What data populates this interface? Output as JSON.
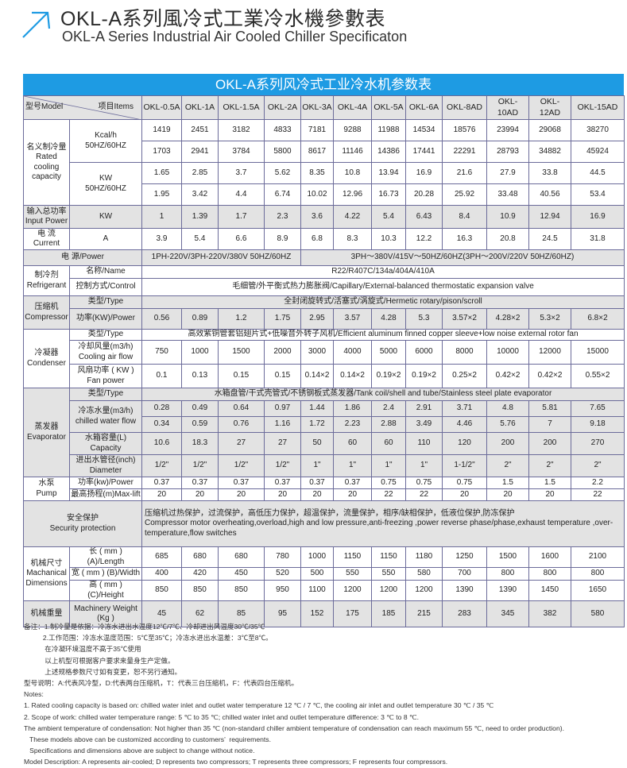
{
  "header": {
    "icon": "arrow-up-right-icon",
    "accent_color": "#1e9be3",
    "title_cn": "OKL-A系列風冷式工業冷水機參數表",
    "title_en": "OKL-A Series Industrial Air Cooled Chiller Specificaton"
  },
  "table": {
    "title": "OKL-A系列风冷式工业冷水机参数表",
    "model_label": "型号Model",
    "items_label": "项目Items",
    "models": [
      "OKL-0.5A",
      "OKL-1A",
      "OKL-1.5A",
      "OKL-2A",
      "OKL-3A",
      "OKL-4A",
      "OKL-5A",
      "OKL-6A",
      "OKL-8AD",
      "OKL-10AD",
      "OKL-12AD",
      "OKL-15AD"
    ],
    "groups": [
      {
        "label": "名义制冷量\nRated\ncooling\ncapacity",
        "shade": false,
        "subs": [
          {
            "label": "Kcal/h\n50HZ/60HZ",
            "lines": [
              {
                "values": [
                  "1419",
                  "2451",
                  "3182",
                  "4833",
                  "7181",
                  "9288",
                  "11988",
                  "14534",
                  "18576",
                  "23994",
                  "29068",
                  "38270"
                ]
              },
              {
                "values": [
                  "1703",
                  "2941",
                  "3784",
                  "5800",
                  "8617",
                  "11146",
                  "14386",
                  "17441",
                  "22291",
                  "28793",
                  "34882",
                  "45924"
                ]
              }
            ]
          },
          {
            "label": "KW\n50HZ/60HZ",
            "lines": [
              {
                "values": [
                  "1.65",
                  "2.85",
                  "3.7",
                  "5.62",
                  "8.35",
                  "10.8",
                  "13.94",
                  "16.9",
                  "21.6",
                  "27.9",
                  "33.8",
                  "44.5"
                ]
              },
              {
                "values": [
                  "1.95",
                  "3.42",
                  "4.4",
                  "6.74",
                  "10.02",
                  "12.96",
                  "16.73",
                  "20.28",
                  "25.92",
                  "33.48",
                  "40.56",
                  "53.4"
                ]
              }
            ]
          }
        ]
      },
      {
        "label": "输入总功率\nInput Power",
        "shade": true,
        "subs": [
          {
            "label": "KW",
            "lines": [
              {
                "values": [
                  "1",
                  "1.39",
                  "1.7",
                  "2.3",
                  "3.6",
                  "4.22",
                  "5.4",
                  "6.43",
                  "8.4",
                  "10.9",
                  "12.94",
                  "16.9"
                ]
              }
            ]
          }
        ]
      },
      {
        "label": "电  流\nCurrent",
        "shade": false,
        "subs": [
          {
            "label": "A",
            "lines": [
              {
                "values": [
                  "3.9",
                  "5.4",
                  "6.6",
                  "8.9",
                  "6.8",
                  "8.3",
                  "10.3",
                  "12.2",
                  "16.3",
                  "20.8",
                  "24.5",
                  "31.8"
                ]
              }
            ]
          }
        ]
      },
      {
        "label": "电      源/Power",
        "merged": true,
        "shade": true,
        "subs": [
          {
            "label": "",
            "lines": [
              {
                "spans": [
                  {
                    "text": "1PH-220V/3PH-220V/380V 50HZ/60HZ",
                    "cols": 4
                  },
                  {
                    "text": "3PH～380V/415V～50HZ/60HZ(3PH～200V/220V   50HZ/60HZ)",
                    "cols": 8
                  }
                ]
              }
            ]
          }
        ]
      },
      {
        "label": "制冷剂\nRefrigerant",
        "shade": false,
        "subs": [
          {
            "label": "名称/Name",
            "lines": [
              {
                "spans": [
                  {
                    "text": "R22/R407C/134a/404A/410A",
                    "cols": 12
                  }
                ]
              }
            ]
          },
          {
            "label": "控制方式/Control",
            "lines": [
              {
                "spans": [
                  {
                    "text": "毛细管/外平衡式热力膨胀阀/Capillary/External-balanced thermostatic expansion valve",
                    "cols": 12
                  }
                ]
              }
            ]
          }
        ]
      },
      {
        "label": "压缩机\nCompressor",
        "shade": true,
        "subs": [
          {
            "label": "类型/Type",
            "lines": [
              {
                "spans": [
                  {
                    "text": "全封闭旋转式/活塞式/涡旋式/Hermetic rotary/pison/scroll",
                    "cols": 12
                  }
                ]
              }
            ]
          },
          {
            "label": "功率(KW)/Power",
            "lines": [
              {
                "values": [
                  "0.56",
                  "0.89",
                  "1.2",
                  "1.75",
                  "2.95",
                  "3.57",
                  "4.28",
                  "5.3",
                  "3.57×2",
                  "4.28×2",
                  "5.3×2",
                  "6.8×2"
                ]
              }
            ]
          }
        ]
      },
      {
        "label": "冷凝器\nCondenser",
        "shade": false,
        "subs": [
          {
            "label": "类型/Type",
            "lines": [
              {
                "spans": [
                  {
                    "text": "高效紫铜管套铝翅片式+低噪音外转子风机/Efficient aluminum finned copper sleeve+low noise external rotor fan",
                    "cols": 12
                  }
                ]
              }
            ]
          },
          {
            "label": "冷却风量(m3/h)\nCooling air flow",
            "lines": [
              {
                "values": [
                  "750",
                  "1000",
                  "1500",
                  "2000",
                  "3000",
                  "4000",
                  "5000",
                  "6000",
                  "8000",
                  "10000",
                  "12000",
                  "15000"
                ]
              }
            ]
          },
          {
            "label": "风扇功率 ( KW )\nFan power",
            "lines": [
              {
                "values": [
                  "0.1",
                  "0.13",
                  "0.15",
                  "0.15",
                  "0.14×2",
                  "0.14×2",
                  "0.19×2",
                  "0.19×2",
                  "0.25×2",
                  "0.42×2",
                  "0.42×2",
                  "0.55×2"
                ]
              }
            ]
          }
        ]
      },
      {
        "label": "蒸发器\nEvaporator",
        "shade": true,
        "subs": [
          {
            "label": "类型/Type",
            "lines": [
              {
                "spans": [
                  {
                    "text": "水箱盘管/干式壳管式/不锈钢板式蒸发器/Tank coil/shell and tube/Stainless steel plate evaporator",
                    "cols": 12
                  }
                ]
              }
            ]
          },
          {
            "label": "冷冻水量(m3/h)\nchilled water flow",
            "lines": [
              {
                "values": [
                  "0.28",
                  "0.49",
                  "0.64",
                  "0.97",
                  "1.44",
                  "1.86",
                  "2.4",
                  "2.91",
                  "3.71",
                  "4.8",
                  "5.81",
                  "7.65"
                ]
              },
              {
                "values": [
                  "0.34",
                  "0.59",
                  "0.76",
                  "1.16",
                  "1.72",
                  "2.23",
                  "2.88",
                  "3.49",
                  "4.46",
                  "5.76",
                  "7",
                  "9.18"
                ]
              }
            ]
          },
          {
            "label": "水箱容量(L)\nCapacity",
            "lines": [
              {
                "values": [
                  "10.6",
                  "18.3",
                  "27",
                  "27",
                  "50",
                  "60",
                  "60",
                  "110",
                  "120",
                  "200",
                  "200",
                  "270"
                ]
              }
            ]
          },
          {
            "label": "进出水管径(inch)\nDiameter",
            "lines": [
              {
                "values": [
                  "1/2\"",
                  "1/2\"",
                  "1/2\"",
                  "1/2\"",
                  "1\"",
                  "1\"",
                  "1\"",
                  "1\"",
                  "1-1/2\"",
                  "2\"",
                  "2\"",
                  "2\""
                ]
              }
            ]
          }
        ]
      },
      {
        "label": "水泵\nPump",
        "shade": false,
        "subs": [
          {
            "label": "功率(kw)/Power",
            "lines": [
              {
                "values": [
                  "0.37",
                  "0.37",
                  "0.37",
                  "0.37",
                  "0.37",
                  "0.37",
                  "0.75",
                  "0.75",
                  "0.75",
                  "1.5",
                  "1.5",
                  "2.2"
                ]
              }
            ]
          },
          {
            "label": "最高扬程(m)Max-lift",
            "lines": [
              {
                "values": [
                  "20",
                  "20",
                  "20",
                  "20",
                  "20",
                  "20",
                  "22",
                  "22",
                  "20",
                  "20",
                  "20",
                  "22"
                ]
              }
            ]
          }
        ]
      },
      {
        "label": "安全保护\nSecurity protection",
        "merged": true,
        "shade": true,
        "subs": [
          {
            "label": "",
            "lines": [
              {
                "spans": [
                  {
                    "text": "压缩机过热保护，过流保护，高低压力保护，超温保护，流量保护，相序/缺相保护，低液位保护,防冻保护\nCompressor motor overheating,overload,high and low pressure,anti-freezing ,power reverse phase/phase,exhaust temperature ,over-temperature,flow switches",
                    "cols": 12,
                    "align": "left"
                  }
                ]
              }
            ]
          }
        ]
      },
      {
        "label": "机械尺寸\nMachanical\nDimensions",
        "shade": false,
        "subs": [
          {
            "label": "长 ( mm ) (A)/Length",
            "lines": [
              {
                "values": [
                  "685",
                  "680",
                  "680",
                  "780",
                  "1000",
                  "1150",
                  "1150",
                  "1180",
                  "1250",
                  "1500",
                  "1600",
                  "2100"
                ]
              }
            ]
          },
          {
            "label": "宽 ( mm ) (B)/Width",
            "lines": [
              {
                "values": [
                  "400",
                  "420",
                  "450",
                  "520",
                  "500",
                  "550",
                  "550",
                  "580",
                  "700",
                  "800",
                  "800",
                  "800"
                ]
              }
            ]
          },
          {
            "label": "高 ( mm ) (C)/Height",
            "lines": [
              {
                "values": [
                  "850",
                  "850",
                  "850",
                  "950",
                  "1100",
                  "1200",
                  "1200",
                  "1200",
                  "1390",
                  "1390",
                  "1450",
                  "1650"
                ]
              }
            ]
          }
        ]
      },
      {
        "label": "机械重量",
        "shade": true,
        "subs": [
          {
            "label": "Machinery Weight\n(Kg )",
            "lines": [
              {
                "values": [
                  "45",
                  "62",
                  "85",
                  "95",
                  "152",
                  "175",
                  "185",
                  "215",
                  "283",
                  "345",
                  "382",
                  "580"
                ]
              }
            ]
          }
        ]
      }
    ]
  },
  "notes": [
    "备注：1.制冷量是依据：冷冻水进出水温度12℃/7℃、冷却进出风温度30℃/35℃",
    "          2.工作范围：冷冻水温度范围：5℃至35℃；冷冻水进出水温差：3℃至8℃。",
    "           在冷凝环境温度不高于35℃使用",
    "           以上机型可根据客户要求来量身生产定做。",
    "           上述规格参数尺寸如有变更，恕不另行通知。",
    "型号说明：A:代表风冷型，D:代表两台压缩机，T：代表三台压缩机，F：代表四台压缩机。",
    "Notes:",
    "1. Rated cooling capacity is based on: chilled water inlet and outlet water temperature 12 ℃ / 7 ℃, the cooling air inlet and outlet temperature 30 ℃ / 35 ℃",
    "2. Scope of work: chilled water temperature range: 5 ℃ to 35 ℃; chilled water inlet and outlet temperature difference: 3 ℃ to 8 ℃.",
    "The ambient temperature of condensation: Not higher than 35 ℃ (non-standard chiller ambient temperature of condensation can reach maximum 55 ℃, need to order production).",
    "   These models above can be customized according to customers’  requirements.",
    "   Specifications and dimensions above are subject to change without notice.",
    "Model Description: A represents air-cooled; D represents two compressors; T represents three compressors; F represents four compressors."
  ]
}
